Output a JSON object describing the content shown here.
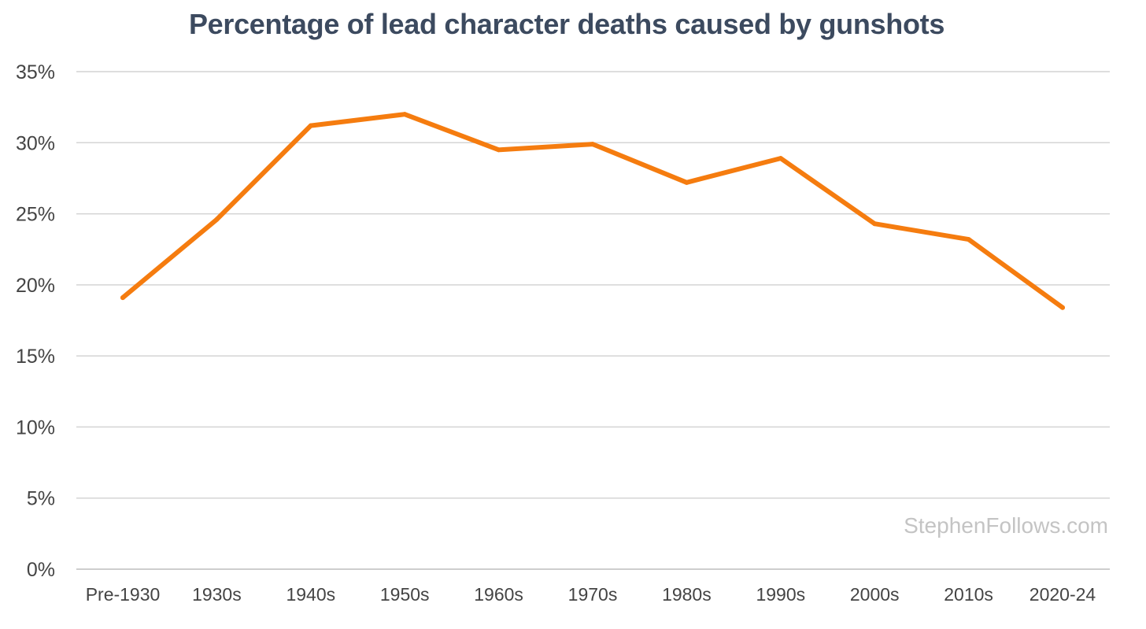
{
  "chart_data": {
    "type": "line",
    "title": "Percentage of lead character deaths caused by gunshots",
    "categories": [
      "Pre-1930",
      "1930s",
      "1940s",
      "1950s",
      "1960s",
      "1970s",
      "1980s",
      "1990s",
      "2000s",
      "2010s",
      "2020-24"
    ],
    "series": [
      {
        "values": [
          19.1,
          24.6,
          31.2,
          32.0,
          29.5,
          29.9,
          27.2,
          28.9,
          24.3,
          23.2,
          18.4
        ]
      }
    ],
    "ylim": [
      0,
      35
    ],
    "yticks": [
      0,
      5,
      10,
      15,
      20,
      25,
      30,
      35
    ],
    "ytick_labels": [
      "0%",
      "5%",
      "10%",
      "15%",
      "20%",
      "25%",
      "30%",
      "35%"
    ],
    "xlabel": "",
    "ylabel": "",
    "grid": true,
    "line_color": "#f57c0f",
    "watermark": "StephenFollows.com"
  }
}
